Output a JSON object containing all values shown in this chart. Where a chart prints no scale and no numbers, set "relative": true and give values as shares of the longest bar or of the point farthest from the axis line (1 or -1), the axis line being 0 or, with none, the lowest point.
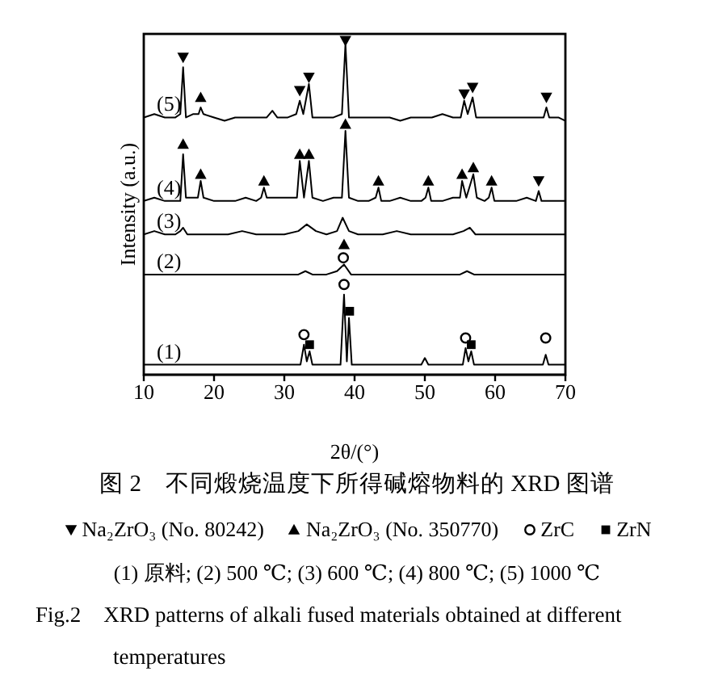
{
  "chart_data": {
    "type": "line",
    "title": "图 2　不同煅烧温度下所得碱熔物料的 XRD 图谱",
    "xlabel": "2θ/(°)",
    "ylabel": "Intensity (a.u.)",
    "relative": true,
    "xlim": [
      10,
      70
    ],
    "xticks": [
      10,
      20,
      30,
      40,
      50,
      60,
      70
    ],
    "legend": "bottom",
    "annotations": [
      "(1) 原料; (2) 500 ℃; (3) 600 ℃; (4) 800 ℃; (5) 1000 ℃",
      "Fig.2　XRD patterns of alkali fused materials obtained at different temperatures"
    ],
    "series": [
      {
        "name": "(1)",
        "color": "#000000",
        "x": [
          10,
          12,
          14,
          16,
          18,
          20,
          22,
          24,
          26,
          28,
          30,
          32.3,
          32.8,
          33.2,
          33.6,
          34,
          36,
          38,
          38.5,
          38.9,
          39.2,
          39.6,
          41,
          43,
          45,
          47,
          49.5,
          50,
          50.5,
          52,
          54,
          55.4,
          55.8,
          56.2,
          56.6,
          57,
          59,
          61,
          63,
          65,
          66.8,
          67.2,
          67.6,
          70
        ],
        "values": [
          0.03,
          0.03,
          0.03,
          0.03,
          0.03,
          0.03,
          0.03,
          0.03,
          0.03,
          0.03,
          0.03,
          0.03,
          0.09,
          0.04,
          0.07,
          0.03,
          0.03,
          0.03,
          0.24,
          0.04,
          0.17,
          0.03,
          0.03,
          0.03,
          0.03,
          0.03,
          0.03,
          0.05,
          0.03,
          0.03,
          0.03,
          0.03,
          0.08,
          0.04,
          0.07,
          0.03,
          0.03,
          0.03,
          0.03,
          0.03,
          0.03,
          0.06,
          0.03,
          0.03
        ]
      },
      {
        "name": "(2)",
        "color": "#000000",
        "x": [
          10,
          12,
          14,
          16,
          18,
          20,
          22,
          24,
          26,
          28,
          30,
          32,
          33,
          34,
          36,
          37.5,
          38.5,
          39.5,
          41,
          43,
          45,
          47,
          49,
          51,
          53,
          55,
          56,
          57,
          59,
          61,
          63,
          65,
          67,
          70
        ],
        "values": [
          0.3,
          0.3,
          0.3,
          0.3,
          0.3,
          0.3,
          0.3,
          0.3,
          0.3,
          0.3,
          0.3,
          0.3,
          0.31,
          0.3,
          0.3,
          0.31,
          0.33,
          0.3,
          0.3,
          0.3,
          0.3,
          0.3,
          0.3,
          0.3,
          0.3,
          0.3,
          0.31,
          0.3,
          0.3,
          0.3,
          0.3,
          0.3,
          0.3,
          0.3
        ]
      },
      {
        "name": "(3)",
        "color": "#000000",
        "x": [
          10,
          11.5,
          13,
          14.5,
          15.2,
          15.6,
          16.2,
          18,
          20,
          22,
          24,
          26,
          28,
          30,
          32,
          33.2,
          34.5,
          36,
          37.5,
          38.3,
          39.2,
          40.5,
          42,
          44,
          46,
          48,
          50,
          52,
          54,
          55.5,
          56.4,
          57.2,
          59,
          61,
          63,
          65,
          67,
          70
        ],
        "values": [
          0.42,
          0.43,
          0.42,
          0.42,
          0.43,
          0.44,
          0.42,
          0.42,
          0.42,
          0.42,
          0.43,
          0.42,
          0.42,
          0.42,
          0.43,
          0.45,
          0.43,
          0.42,
          0.43,
          0.47,
          0.43,
          0.42,
          0.42,
          0.42,
          0.43,
          0.42,
          0.42,
          0.42,
          0.42,
          0.43,
          0.44,
          0.42,
          0.42,
          0.42,
          0.42,
          0.42,
          0.42,
          0.42
        ]
      },
      {
        "name": "(4)",
        "color": "#000000",
        "x": [
          10,
          11.5,
          13,
          14.5,
          15.2,
          15.6,
          16,
          17,
          17.7,
          18.1,
          18.5,
          20,
          21.5,
          23,
          24.5,
          26,
          26.7,
          27.1,
          27.5,
          29,
          30.5,
          31.8,
          32.2,
          32.8,
          33.5,
          34,
          35.5,
          37,
          38.2,
          38.7,
          39.2,
          40.5,
          42,
          43,
          43.4,
          43.8,
          45,
          46.5,
          48,
          49.5,
          50.1,
          50.5,
          50.9,
          52.5,
          54,
          55,
          55.3,
          55.9,
          56.9,
          57.4,
          58.5,
          59.1,
          59.5,
          59.9,
          61.5,
          63,
          64.5,
          65.8,
          66.2,
          66.6,
          68,
          70
        ],
        "values": [
          0.52,
          0.53,
          0.52,
          0.52,
          0.52,
          0.66,
          0.53,
          0.53,
          0.53,
          0.58,
          0.53,
          0.52,
          0.52,
          0.52,
          0.53,
          0.52,
          0.53,
          0.56,
          0.53,
          0.53,
          0.53,
          0.53,
          0.64,
          0.53,
          0.64,
          0.53,
          0.52,
          0.53,
          0.53,
          0.73,
          0.53,
          0.52,
          0.52,
          0.53,
          0.56,
          0.52,
          0.52,
          0.53,
          0.52,
          0.52,
          0.53,
          0.56,
          0.52,
          0.52,
          0.53,
          0.53,
          0.58,
          0.53,
          0.6,
          0.53,
          0.52,
          0.53,
          0.56,
          0.52,
          0.52,
          0.52,
          0.53,
          0.52,
          0.55,
          0.52,
          0.52,
          0.52
        ]
      },
      {
        "name": "(5)",
        "color": "#000000",
        "x": [
          10,
          11.5,
          13,
          14.5,
          15.2,
          15.6,
          16,
          17,
          17.8,
          18.1,
          18.5,
          20,
          21.5,
          23,
          24.5,
          26,
          27.5,
          28.3,
          29,
          30.5,
          31.7,
          32.2,
          32.7,
          33.5,
          34,
          35.5,
          37,
          38.2,
          38.7,
          39.2,
          40.5,
          42,
          43.5,
          45,
          46.5,
          48,
          49.5,
          51,
          52.5,
          54,
          55.1,
          55.6,
          56.1,
          56.8,
          57.3,
          58.5,
          60,
          61.5,
          63,
          64.5,
          66,
          66.9,
          67.3,
          67.7,
          69,
          70
        ],
        "values": [
          0.77,
          0.78,
          0.77,
          0.77,
          0.78,
          0.92,
          0.77,
          0.78,
          0.78,
          0.8,
          0.78,
          0.77,
          0.76,
          0.77,
          0.77,
          0.77,
          0.77,
          0.79,
          0.77,
          0.77,
          0.78,
          0.82,
          0.78,
          0.87,
          0.77,
          0.77,
          0.77,
          0.78,
          0.99,
          0.77,
          0.77,
          0.77,
          0.77,
          0.77,
          0.76,
          0.77,
          0.77,
          0.77,
          0.78,
          0.77,
          0.77,
          0.82,
          0.78,
          0.83,
          0.77,
          0.77,
          0.77,
          0.77,
          0.77,
          0.77,
          0.77,
          0.77,
          0.8,
          0.77,
          0.77,
          0.76
        ]
      },
      {
        "type": "scatter",
        "name": "Na₂ZrO₃ (No. 80242)",
        "color": "#000000",
        "marker": "triangle-down",
        "x": [
          15.6,
          32.2,
          33.5,
          38.7,
          55.6,
          56.8,
          67.3,
          66.2
        ],
        "values": [
          0.95,
          0.85,
          0.89,
          1.0,
          0.84,
          0.86,
          0.83,
          0.58
        ]
      },
      {
        "type": "scatter",
        "name": "Na₂ZrO₃ (No. 350770)",
        "color": "#000000",
        "marker": "triangle",
        "x": [
          18.1,
          15.6,
          18.1,
          27.1,
          32.2,
          33.5,
          38.7,
          43.4,
          50.5,
          55.3,
          56.9,
          59.5,
          38.5
        ],
        "values": [
          0.83,
          0.69,
          0.6,
          0.58,
          0.66,
          0.66,
          0.75,
          0.58,
          0.58,
          0.6,
          0.62,
          0.58,
          0.39
        ]
      },
      {
        "type": "scatter",
        "name": "ZrC",
        "color": "#000000",
        "marker": "circle",
        "x": [
          38.4,
          32.8,
          38.5,
          55.8,
          67.2
        ],
        "values": [
          0.35,
          0.12,
          0.27,
          0.11,
          0.11
        ]
      },
      {
        "type": "scatter",
        "name": "ZrN",
        "color": "#000000",
        "marker": "square",
        "x": [
          33.6,
          39.3,
          56.6
        ],
        "values": [
          0.09,
          0.19,
          0.09
        ]
      }
    ]
  }
}
